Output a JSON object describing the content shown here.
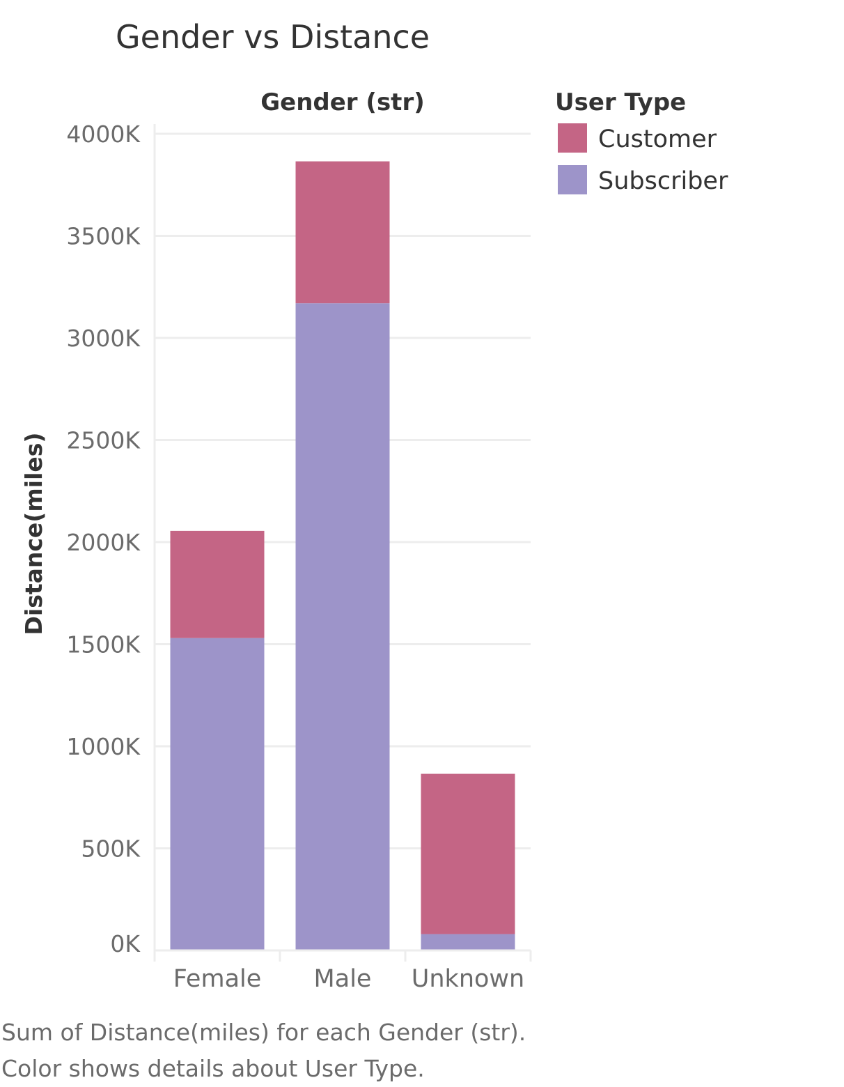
{
  "chart_data": {
    "type": "bar",
    "stacked": true,
    "title": "Gender vs Distance",
    "column_header": "Gender (str)",
    "ylabel": "Distance(miles)",
    "xlabel": "",
    "categories": [
      "Female",
      "Male",
      "Unknown"
    ],
    "series": [
      {
        "name": "Subscriber",
        "color": "#9d94c9",
        "values": [
          1530,
          3170,
          80
        ]
      },
      {
        "name": "Customer",
        "color": "#c46585",
        "values": [
          525,
          695,
          785
        ]
      }
    ],
    "ylim": [
      0,
      4000
    ],
    "yticks": [
      0,
      500,
      1000,
      1500,
      2000,
      2500,
      3000,
      3500,
      4000
    ],
    "ytick_labels": [
      "0K",
      "500K",
      "1000K",
      "1500K",
      "2000K",
      "2500K",
      "3000K",
      "3500K",
      "4000K"
    ],
    "grid": true,
    "legend": {
      "title": "User Type",
      "placement": "right",
      "items": [
        {
          "label": "Customer",
          "color": "#c46585"
        },
        {
          "label": "Subscriber",
          "color": "#9d94c9"
        }
      ]
    }
  },
  "footer": {
    "caption": "Sum of Distance(miles) for each Gender (str).  Color shows details about User Type."
  }
}
